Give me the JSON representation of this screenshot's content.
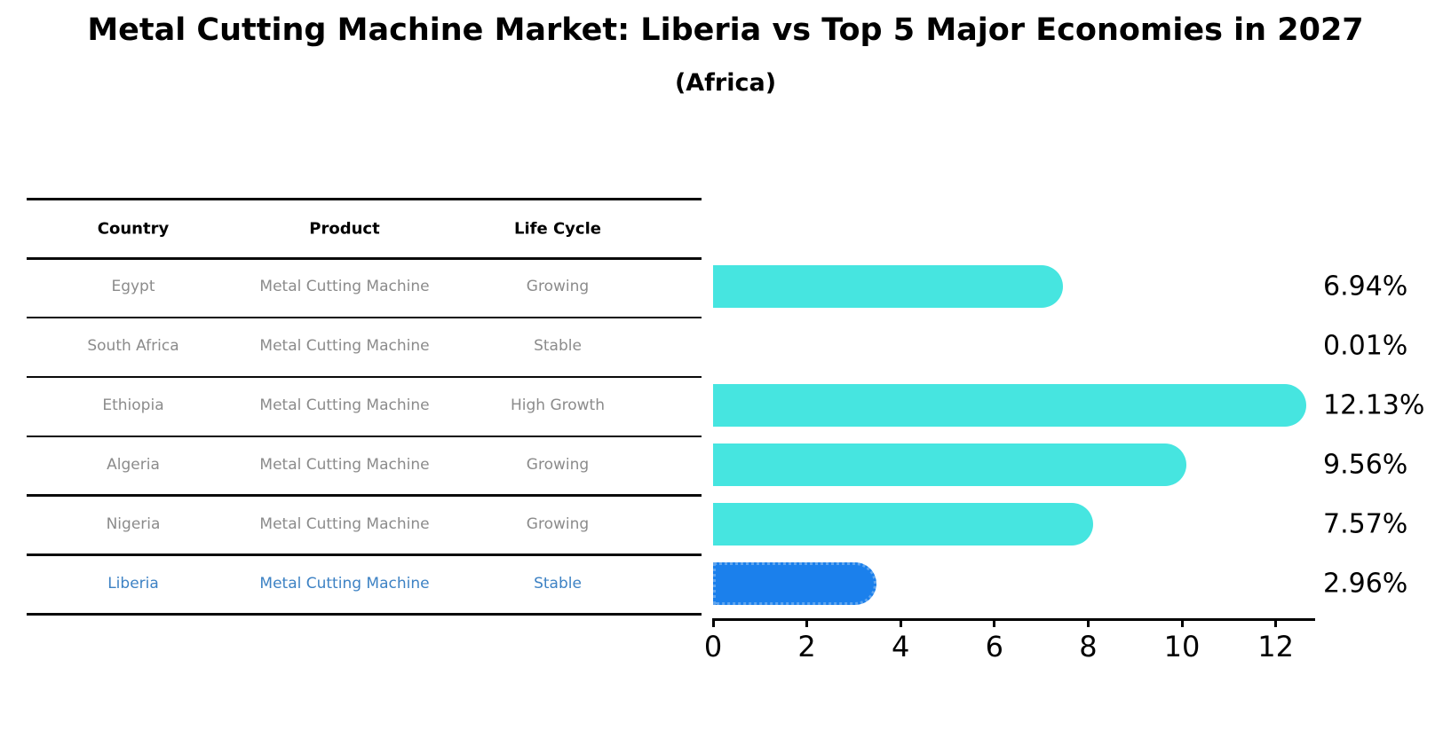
{
  "title": "Metal Cutting Machine Market: Liberia vs Top 5 Major Economies in 2027",
  "subtitle": "(Africa)",
  "colors": {
    "bar_default": "#46e5e0",
    "bar_highlight": "#1b80ec",
    "bar_highlight_border": "#5fa5ef",
    "highlight_text": "#3d82c4",
    "row_text": "#8b8b8b",
    "header_text": "#000000",
    "axis": "#000000"
  },
  "table": {
    "headers": [
      "Country",
      "Product",
      "Life Cycle"
    ],
    "rows": [
      {
        "country": "Egypt",
        "product": "Metal Cutting Machine",
        "life_cycle": "Growing",
        "highlight": false
      },
      {
        "country": "South Africa",
        "product": "Metal Cutting Machine",
        "life_cycle": "Stable",
        "highlight": false
      },
      {
        "country": "Ethiopia",
        "product": "Metal Cutting Machine",
        "life_cycle": "High Growth",
        "highlight": false
      },
      {
        "country": "Algeria",
        "product": "Metal Cutting Machine",
        "life_cycle": "Growing",
        "highlight": false
      },
      {
        "country": "Nigeria",
        "product": "Metal Cutting Machine",
        "life_cycle": "Growing",
        "highlight": false
      },
      {
        "country": "Liberia",
        "product": "Metal Cutting Machine",
        "life_cycle": "Stable",
        "highlight": true
      }
    ]
  },
  "chart_data": {
    "type": "bar",
    "orientation": "horizontal",
    "title": "Metal Cutting Machine Market: Liberia vs Top 5 Major Economies in 2027",
    "subtitle": "(Africa)",
    "categories": [
      "Egypt",
      "South Africa",
      "Ethiopia",
      "Algeria",
      "Nigeria",
      "Liberia"
    ],
    "values": [
      6.94,
      0.01,
      12.13,
      9.56,
      7.57,
      2.96
    ],
    "labels": [
      "6.94%",
      "0.01%",
      "12.13%",
      "9.56%",
      "7.57%",
      "2.96%"
    ],
    "xlabel": "",
    "ylabel": "",
    "x_ticks": [
      0,
      2,
      4,
      6,
      8,
      10,
      12
    ],
    "xlim": [
      0,
      12.85
    ],
    "grid": false,
    "legend": false,
    "highlight_category": "Liberia"
  }
}
